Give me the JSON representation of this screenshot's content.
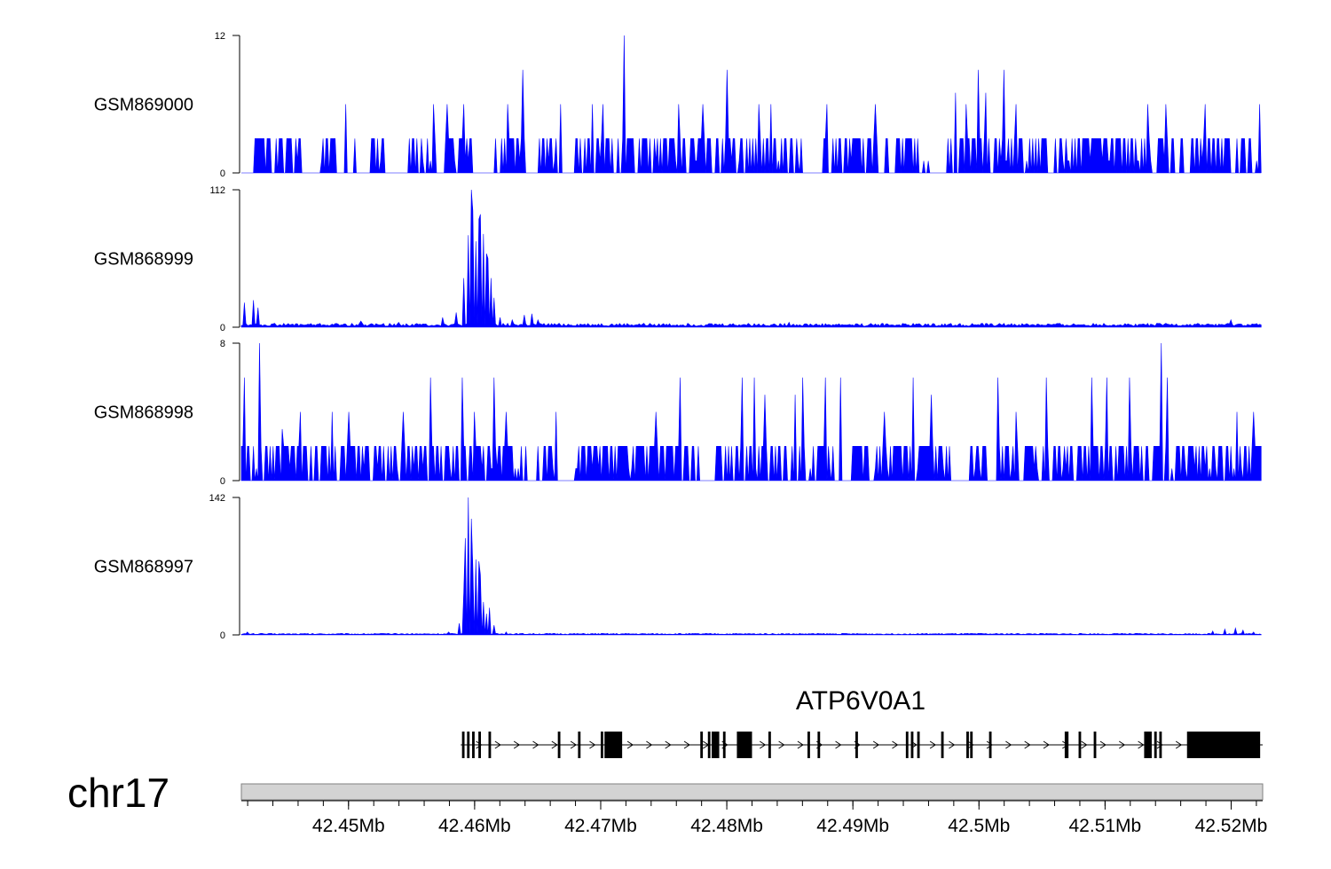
{
  "chart_data": {
    "type": "area",
    "title": "",
    "x_range_mb": [
      42.4415,
      42.5225
    ],
    "color": "#0000ff",
    "tracks": [
      {
        "name": "GSM869000",
        "ylim": [
          0,
          12
        ],
        "ticks": [
          "0",
          "12"
        ],
        "baseline": 0,
        "floor_value": 3,
        "peaks": [
          {
            "x": 42.4498,
            "y": 6
          },
          {
            "x": 42.4567,
            "y": 6
          },
          {
            "x": 42.4578,
            "y": 6
          },
          {
            "x": 42.4592,
            "y": 6
          },
          {
            "x": 42.4626,
            "y": 6
          },
          {
            "x": 42.4638,
            "y": 9
          },
          {
            "x": 42.4668,
            "y": 6
          },
          {
            "x": 42.4693,
            "y": 6
          },
          {
            "x": 42.4702,
            "y": 6
          },
          {
            "x": 42.4719,
            "y": 12
          },
          {
            "x": 42.4762,
            "y": 6
          },
          {
            "x": 42.4781,
            "y": 6
          },
          {
            "x": 42.48,
            "y": 9
          },
          {
            "x": 42.4825,
            "y": 6
          },
          {
            "x": 42.4835,
            "y": 6
          },
          {
            "x": 42.488,
            "y": 6
          },
          {
            "x": 42.4918,
            "y": 6
          },
          {
            "x": 42.4981,
            "y": 7
          },
          {
            "x": 42.499,
            "y": 6
          },
          {
            "x": 42.5,
            "y": 9
          },
          {
            "x": 42.5005,
            "y": 7
          },
          {
            "x": 42.502,
            "y": 9
          },
          {
            "x": 42.503,
            "y": 6
          },
          {
            "x": 42.5134,
            "y": 6
          },
          {
            "x": 42.5148,
            "y": 6
          },
          {
            "x": 42.518,
            "y": 6
          },
          {
            "x": 42.5223,
            "y": 6
          }
        ],
        "gaps": [
          [
            42.4415,
            42.4425
          ],
          [
            42.4462,
            42.4478
          ],
          [
            42.449,
            42.45
          ],
          [
            42.4506,
            42.4515
          ],
          [
            42.453,
            42.4545
          ],
          [
            42.46,
            42.4612
          ],
          [
            42.4668,
            42.468
          ],
          [
            42.486,
            42.4875
          ],
          [
            42.496,
            42.4975
          ]
        ]
      },
      {
        "name": "GSM868999",
        "ylim": [
          0,
          112
        ],
        "ticks": [
          "0",
          "112"
        ],
        "baseline": 2,
        "floor_value": 2,
        "peaks": [
          {
            "x": 42.4418,
            "y": 20
          },
          {
            "x": 42.4425,
            "y": 22
          },
          {
            "x": 42.4428,
            "y": 16
          },
          {
            "x": 42.451,
            "y": 5
          },
          {
            "x": 42.454,
            "y": 4
          },
          {
            "x": 42.4575,
            "y": 8
          },
          {
            "x": 42.4585,
            "y": 12
          },
          {
            "x": 42.4592,
            "y": 40
          },
          {
            "x": 42.4595,
            "y": 75
          },
          {
            "x": 42.4597,
            "y": 112
          },
          {
            "x": 42.4599,
            "y": 95
          },
          {
            "x": 42.4601,
            "y": 70
          },
          {
            "x": 42.4603,
            "y": 88
          },
          {
            "x": 42.4605,
            "y": 92
          },
          {
            "x": 42.4607,
            "y": 76
          },
          {
            "x": 42.4609,
            "y": 60
          },
          {
            "x": 42.4611,
            "y": 56
          },
          {
            "x": 42.4613,
            "y": 40
          },
          {
            "x": 42.4615,
            "y": 24
          },
          {
            "x": 42.462,
            "y": 8
          },
          {
            "x": 42.463,
            "y": 6
          },
          {
            "x": 42.464,
            "y": 10
          },
          {
            "x": 42.4645,
            "y": 11
          },
          {
            "x": 42.465,
            "y": 6
          },
          {
            "x": 42.485,
            "y": 4
          },
          {
            "x": 42.52,
            "y": 6
          }
        ],
        "gaps": []
      },
      {
        "name": "GSM868998",
        "ylim": [
          0,
          8
        ],
        "ticks": [
          "0",
          "8"
        ],
        "baseline": 0,
        "floor_value": 2,
        "peaks": [
          {
            "x": 42.4417,
            "y": 6
          },
          {
            "x": 42.443,
            "y": 8
          },
          {
            "x": 42.4448,
            "y": 3
          },
          {
            "x": 42.4462,
            "y": 4
          },
          {
            "x": 42.4487,
            "y": 4
          },
          {
            "x": 42.45,
            "y": 4
          },
          {
            "x": 42.4543,
            "y": 4
          },
          {
            "x": 42.4565,
            "y": 6
          },
          {
            "x": 42.459,
            "y": 6
          },
          {
            "x": 42.46,
            "y": 4
          },
          {
            "x": 42.4615,
            "y": 6
          },
          {
            "x": 42.4625,
            "y": 4
          },
          {
            "x": 42.4665,
            "y": 4
          },
          {
            "x": 42.4744,
            "y": 4
          },
          {
            "x": 42.4763,
            "y": 6
          },
          {
            "x": 42.4812,
            "y": 6
          },
          {
            "x": 42.4822,
            "y": 6
          },
          {
            "x": 42.483,
            "y": 5
          },
          {
            "x": 42.4854,
            "y": 5
          },
          {
            "x": 42.486,
            "y": 6
          },
          {
            "x": 42.4878,
            "y": 6
          },
          {
            "x": 42.489,
            "y": 6
          },
          {
            "x": 42.4925,
            "y": 4
          },
          {
            "x": 42.4948,
            "y": 6
          },
          {
            "x": 42.4962,
            "y": 5
          },
          {
            "x": 42.5015,
            "y": 6
          },
          {
            "x": 42.503,
            "y": 4
          },
          {
            "x": 42.5054,
            "y": 6
          },
          {
            "x": 42.5089,
            "y": 6
          },
          {
            "x": 42.5101,
            "y": 6
          },
          {
            "x": 42.512,
            "y": 6
          },
          {
            "x": 42.5145,
            "y": 8
          },
          {
            "x": 42.515,
            "y": 6
          },
          {
            "x": 42.5205,
            "y": 4
          },
          {
            "x": 42.5218,
            "y": 4
          }
        ],
        "gaps": [
          [
            42.4665,
            42.468
          ],
          [
            42.4778,
            42.479
          ],
          [
            42.4885,
            42.4897
          ],
          [
            42.4981,
            42.4993
          ]
        ]
      },
      {
        "name": "GSM868997",
        "ylim": [
          0,
          142
        ],
        "ticks": [
          "0",
          "142"
        ],
        "baseline": 1,
        "floor_value": 1,
        "peaks": [
          {
            "x": 42.442,
            "y": 3
          },
          {
            "x": 42.458,
            "y": 3
          },
          {
            "x": 42.4588,
            "y": 12
          },
          {
            "x": 42.4591,
            "y": 45
          },
          {
            "x": 42.4593,
            "y": 100
          },
          {
            "x": 42.4595,
            "y": 142
          },
          {
            "x": 42.4597,
            "y": 120
          },
          {
            "x": 42.4599,
            "y": 70
          },
          {
            "x": 42.4601,
            "y": 78
          },
          {
            "x": 42.4603,
            "y": 76
          },
          {
            "x": 42.4605,
            "y": 62
          },
          {
            "x": 42.4607,
            "y": 34
          },
          {
            "x": 42.4609,
            "y": 22
          },
          {
            "x": 42.4612,
            "y": 28
          },
          {
            "x": 42.4615,
            "y": 10
          },
          {
            "x": 42.4625,
            "y": 3
          },
          {
            "x": 42.5185,
            "y": 4
          },
          {
            "x": 42.5195,
            "y": 6
          },
          {
            "x": 42.5203,
            "y": 7
          },
          {
            "x": 42.521,
            "y": 5
          },
          {
            "x": 42.5218,
            "y": 3
          }
        ],
        "gaps": []
      }
    ],
    "gene": {
      "name": "ATP6V0A1",
      "strand": "+",
      "intron_range_mb": [
        42.4589,
        42.5225
      ],
      "exons_mb": [
        [
          42.459,
          42.4592
        ],
        [
          42.4594,
          42.4596
        ],
        [
          42.4598,
          42.46
        ],
        [
          42.4603,
          42.4605
        ],
        [
          42.4611,
          42.4613
        ],
        [
          42.4666,
          42.4668
        ],
        [
          42.4682,
          42.4684
        ],
        [
          42.47,
          42.4702
        ],
        [
          42.4703,
          42.4717
        ],
        [
          42.4779,
          42.4781
        ],
        [
          42.4785,
          42.4787
        ],
        [
          42.4788,
          42.4794
        ],
        [
          42.4797,
          42.4799
        ],
        [
          42.4808,
          42.482
        ],
        [
          42.4833,
          42.4835
        ],
        [
          42.4864,
          42.4866
        ],
        [
          42.4872,
          42.4874
        ],
        [
          42.4902,
          42.4904
        ],
        [
          42.4942,
          42.4944
        ],
        [
          42.4946,
          42.4948
        ],
        [
          42.4951,
          42.4953
        ],
        [
          42.497,
          42.4972
        ],
        [
          42.499,
          42.4992
        ],
        [
          42.4993,
          42.4995
        ],
        [
          42.5008,
          42.501
        ],
        [
          42.5068,
          42.5071
        ],
        [
          42.5079,
          42.5081
        ],
        [
          42.5091,
          42.5093
        ],
        [
          42.5131,
          42.5137
        ],
        [
          42.5139,
          42.5141
        ],
        [
          42.5143,
          42.5145
        ],
        [
          42.5165,
          42.5223
        ]
      ]
    },
    "chromosome": "chr17",
    "axis_ticks": [
      "42.45Mb",
      "42.46Mb",
      "42.47Mb",
      "42.48Mb",
      "42.49Mb",
      "42.5Mb",
      "42.51Mb",
      "42.52Mb"
    ],
    "axis_tick_values_mb": [
      42.45,
      42.46,
      42.47,
      42.48,
      42.49,
      42.5,
      42.51,
      42.52
    ],
    "minor_tick_step_mb": 0.002
  }
}
